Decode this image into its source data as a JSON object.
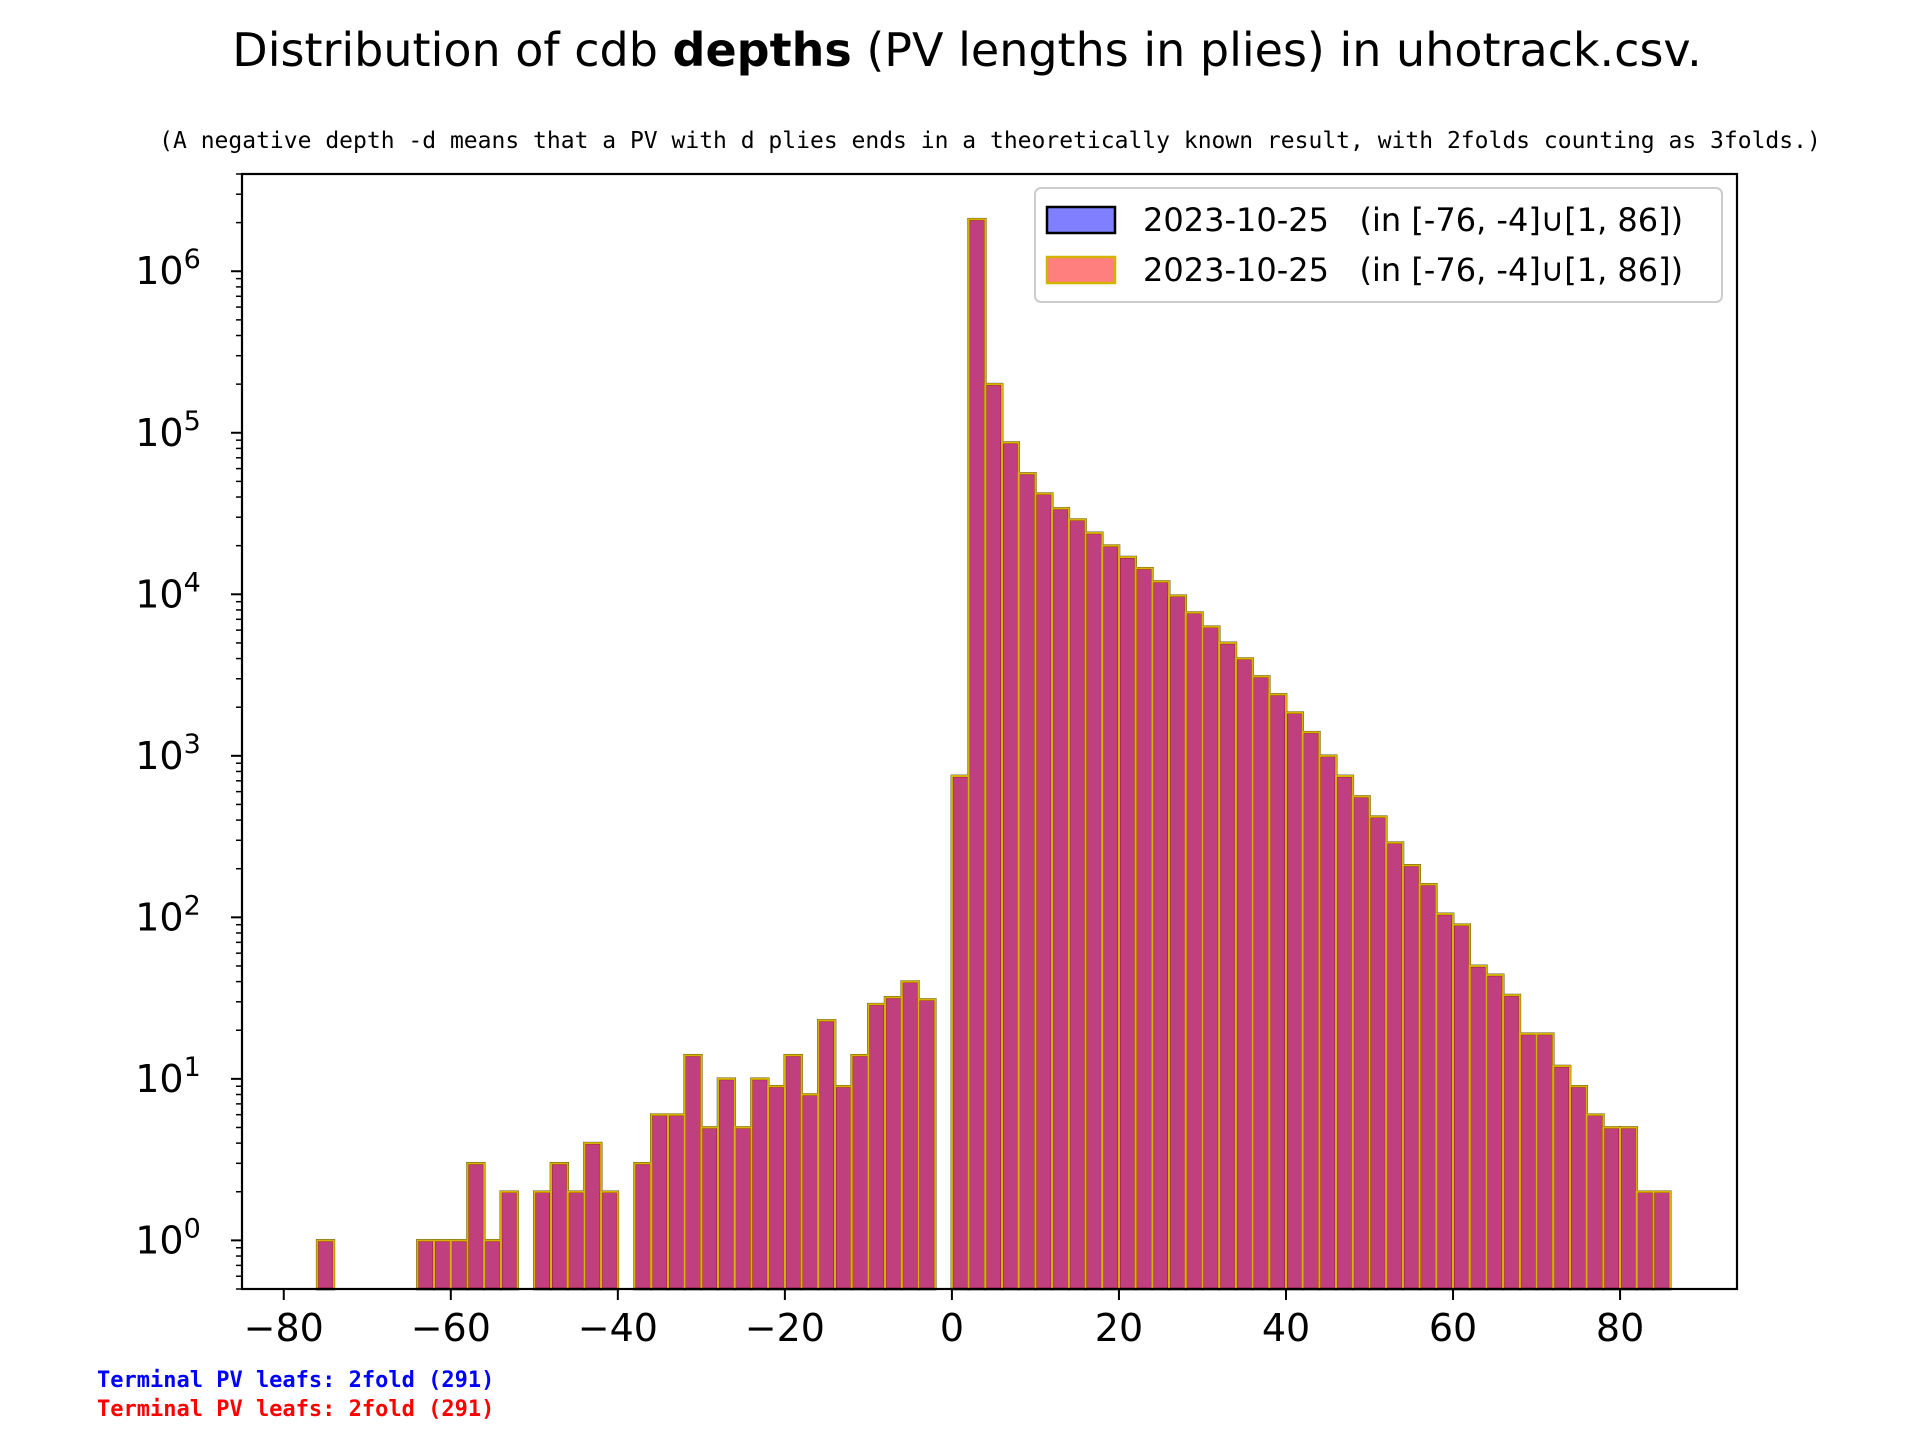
{
  "chart_data": {
    "type": "bar",
    "title_pre": "Distribution of cdb ",
    "title_bold": "depths",
    "title_post": " (PV lengths in plies) in uhotrack.csv.",
    "subtitle": "(A negative depth -d means that a PV with d plies ends in a theoretically known result, with 2folds counting as 3folds.)",
    "xlabel": "",
    "ylabel": "",
    "x_scale": "linear",
    "y_scale": "log",
    "xlim": [
      -85,
      94
    ],
    "ylim": [
      0.5,
      4000000
    ],
    "x_ticks": [
      -80,
      -60,
      -40,
      -20,
      0,
      20,
      40,
      60,
      80
    ],
    "x_tick_labels": [
      "−80",
      "−60",
      "−40",
      "−20",
      "0",
      "20",
      "40",
      "60",
      "80"
    ],
    "y_ticks": [
      {
        "value": 1,
        "exp": "0"
      },
      {
        "value": 10,
        "exp": "1"
      },
      {
        "value": 100,
        "exp": "2"
      },
      {
        "value": 1000,
        "exp": "3"
      },
      {
        "value": 10000,
        "exp": "4"
      },
      {
        "value": 100000,
        "exp": "5"
      },
      {
        "value": 1000000,
        "exp": "6"
      }
    ],
    "y_tick_base": "10",
    "bin_width": 2,
    "grid": false,
    "legend_position": "top-right",
    "series": [
      {
        "name": "2023-10-25   (in [-76, -4]∪[1, 86])",
        "fill": "#0000ff",
        "fill_opacity": 0.5,
        "edge": "#000000",
        "bins": [
          [
            -76,
            1
          ],
          [
            -64,
            1
          ],
          [
            -62,
            1
          ],
          [
            -60,
            1
          ],
          [
            -58,
            3
          ],
          [
            -56,
            1
          ],
          [
            -54,
            2
          ],
          [
            -50,
            2
          ],
          [
            -48,
            3
          ],
          [
            -46,
            2
          ],
          [
            -44,
            4
          ],
          [
            -42,
            2
          ],
          [
            -38,
            3
          ],
          [
            -36,
            6
          ],
          [
            -34,
            6
          ],
          [
            -32,
            14
          ],
          [
            -30,
            5
          ],
          [
            -28,
            10
          ],
          [
            -26,
            5
          ],
          [
            -24,
            10
          ],
          [
            -22,
            9
          ],
          [
            -20,
            14
          ],
          [
            -18,
            8
          ],
          [
            -16,
            23
          ],
          [
            -14,
            9
          ],
          [
            -12,
            14
          ],
          [
            -10,
            29
          ],
          [
            -8,
            32
          ],
          [
            -6,
            40
          ],
          [
            -4,
            31
          ],
          [
            0,
            750
          ],
          [
            2,
            2100000
          ],
          [
            4,
            200000
          ],
          [
            6,
            87000
          ],
          [
            8,
            56000
          ],
          [
            10,
            42000
          ],
          [
            12,
            34000
          ],
          [
            14,
            29000
          ],
          [
            16,
            24000
          ],
          [
            18,
            20000
          ],
          [
            20,
            17000
          ],
          [
            22,
            14500
          ],
          [
            24,
            12000
          ],
          [
            26,
            9800
          ],
          [
            28,
            7700
          ],
          [
            30,
            6300
          ],
          [
            32,
            5000
          ],
          [
            34,
            4000
          ],
          [
            36,
            3100
          ],
          [
            38,
            2400
          ],
          [
            40,
            1850
          ],
          [
            42,
            1400
          ],
          [
            44,
            1000
          ],
          [
            46,
            750
          ],
          [
            48,
            560
          ],
          [
            50,
            420
          ],
          [
            52,
            290
          ],
          [
            54,
            210
          ],
          [
            56,
            160
          ],
          [
            58,
            105
          ],
          [
            60,
            90
          ],
          [
            62,
            50
          ],
          [
            64,
            44
          ],
          [
            66,
            33
          ],
          [
            68,
            19
          ],
          [
            70,
            19
          ],
          [
            72,
            12
          ],
          [
            74,
            9
          ],
          [
            76,
            6
          ],
          [
            78,
            5
          ],
          [
            80,
            5
          ],
          [
            82,
            2
          ],
          [
            84,
            2
          ]
        ]
      },
      {
        "name": "2023-10-25   (in [-76, -4]∪[1, 86])",
        "fill": "#ff0000",
        "fill_opacity": 0.5,
        "edge": "#d4b400",
        "bins": [
          [
            -76,
            1
          ],
          [
            -64,
            1
          ],
          [
            -62,
            1
          ],
          [
            -60,
            1
          ],
          [
            -58,
            3
          ],
          [
            -56,
            1
          ],
          [
            -54,
            2
          ],
          [
            -50,
            2
          ],
          [
            -48,
            3
          ],
          [
            -46,
            2
          ],
          [
            -44,
            4
          ],
          [
            -42,
            2
          ],
          [
            -38,
            3
          ],
          [
            -36,
            6
          ],
          [
            -34,
            6
          ],
          [
            -32,
            14
          ],
          [
            -30,
            5
          ],
          [
            -28,
            10
          ],
          [
            -26,
            5
          ],
          [
            -24,
            10
          ],
          [
            -22,
            9
          ],
          [
            -20,
            14
          ],
          [
            -18,
            8
          ],
          [
            -16,
            23
          ],
          [
            -14,
            9
          ],
          [
            -12,
            14
          ],
          [
            -10,
            29
          ],
          [
            -8,
            32
          ],
          [
            -6,
            40
          ],
          [
            -4,
            31
          ],
          [
            0,
            750
          ],
          [
            2,
            2100000
          ],
          [
            4,
            200000
          ],
          [
            6,
            87000
          ],
          [
            8,
            56000
          ],
          [
            10,
            42000
          ],
          [
            12,
            34000
          ],
          [
            14,
            29000
          ],
          [
            16,
            24000
          ],
          [
            18,
            20000
          ],
          [
            20,
            17000
          ],
          [
            22,
            14500
          ],
          [
            24,
            12000
          ],
          [
            26,
            9800
          ],
          [
            28,
            7700
          ],
          [
            30,
            6300
          ],
          [
            32,
            5000
          ],
          [
            34,
            4000
          ],
          [
            36,
            3100
          ],
          [
            38,
            2400
          ],
          [
            40,
            1850
          ],
          [
            42,
            1400
          ],
          [
            44,
            1000
          ],
          [
            46,
            750
          ],
          [
            48,
            560
          ],
          [
            50,
            420
          ],
          [
            52,
            290
          ],
          [
            54,
            210
          ],
          [
            56,
            160
          ],
          [
            58,
            105
          ],
          [
            60,
            90
          ],
          [
            62,
            50
          ],
          [
            64,
            44
          ],
          [
            66,
            33
          ],
          [
            68,
            19
          ],
          [
            70,
            19
          ],
          [
            72,
            12
          ],
          [
            74,
            9
          ],
          [
            76,
            6
          ],
          [
            78,
            5
          ],
          [
            80,
            5
          ],
          [
            82,
            2
          ],
          [
            84,
            2
          ]
        ]
      }
    ],
    "footnotes": [
      {
        "text": "Terminal PV leafs: 2fold (291)",
        "color": "#0000ff"
      },
      {
        "text": "Terminal PV leafs: 2fold (291)",
        "color": "#ff0000"
      }
    ]
  }
}
